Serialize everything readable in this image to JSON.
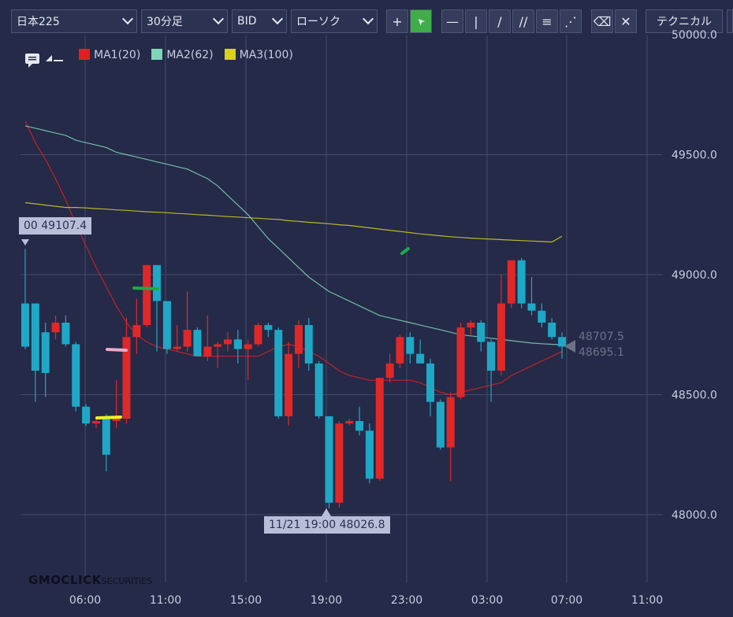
{
  "toolbar": {
    "symbol": "日本225",
    "timeframe": "30分足",
    "price_type": "BID",
    "chart_style": "ローソク",
    "technical": "テクニカル",
    "tools": [
      {
        "name": "crosshair-icon",
        "glyph": "+"
      },
      {
        "name": "pointer-icon",
        "glyph": "➤"
      },
      {
        "name": "horizontal-line-icon",
        "glyph": "—"
      },
      {
        "name": "vertical-line-icon",
        "glyph": "|"
      },
      {
        "name": "trend-line-icon",
        "glyph": "/"
      },
      {
        "name": "parallel-lines-icon",
        "glyph": "//"
      },
      {
        "name": "fibonacci-retracement-icon",
        "glyph": "≡"
      },
      {
        "name": "fibonacci-fan-icon",
        "glyph": "⋰"
      },
      {
        "name": "eraser-icon",
        "glyph": "⌫"
      },
      {
        "name": "erase-all-icon",
        "glyph": "✕"
      }
    ]
  },
  "legend": [
    {
      "label": "MA1(20)",
      "color": "#e02020"
    },
    {
      "label": "MA2(62)",
      "color": "#7fd6b8"
    },
    {
      "label": "MA3(100)",
      "color": "#d8d020"
    }
  ],
  "chart_data": {
    "type": "candlestick",
    "y_ticks": [
      "50000.0",
      "49500.0",
      "49000.0",
      "48500.0",
      "48000.0"
    ],
    "x_ticks": [
      "06:00",
      "11:00",
      "15:00",
      "19:00",
      "23:00",
      "03:00",
      "07:00",
      "11:00"
    ],
    "high_label": "00 49107.4",
    "low_label": "11/21 19:00 48026.8",
    "last_prices": [
      "48707.5",
      "48695.1"
    ],
    "candles": [
      [
        48880,
        49107,
        48690,
        48700
      ],
      [
        48880,
        48880,
        48470,
        48600
      ],
      [
        48760,
        48800,
        48490,
        48590
      ],
      [
        48760,
        48830,
        48730,
        48800
      ],
      [
        48800,
        48830,
        48700,
        48710
      ],
      [
        48710,
        48720,
        48430,
        48450
      ],
      [
        48450,
        48460,
        48370,
        48380
      ],
      [
        48380,
        48400,
        48360,
        48390
      ],
      [
        48400,
        48420,
        48180,
        48250
      ],
      [
        48390,
        48560,
        48360,
        48400
      ],
      [
        48400,
        48820,
        48380,
        48740
      ],
      [
        48740,
        48900,
        48670,
        48790
      ],
      [
        48790,
        49040,
        48780,
        49040
      ],
      [
        49040,
        49040,
        48680,
        48890
      ],
      [
        48890,
        48890,
        48670,
        48690
      ],
      [
        48690,
        48790,
        48680,
        48700
      ],
      [
        48700,
        48930,
        48680,
        48770
      ],
      [
        48770,
        48780,
        48670,
        48660
      ],
      [
        48660,
        48830,
        48640,
        48700
      ],
      [
        48700,
        48720,
        48610,
        48710
      ],
      [
        48710,
        48760,
        48680,
        48730
      ],
      [
        48730,
        48770,
        48630,
        48690
      ],
      [
        48690,
        48730,
        48560,
        48710
      ],
      [
        48710,
        48800,
        48700,
        48790
      ],
      [
        48790,
        48800,
        48740,
        48770
      ],
      [
        48770,
        48780,
        48400,
        48410
      ],
      [
        48410,
        48720,
        48370,
        48670
      ],
      [
        48670,
        48810,
        48610,
        48790
      ],
      [
        48790,
        48820,
        48600,
        48630
      ],
      [
        48630,
        48640,
        48400,
        48410
      ],
      [
        48410,
        48410,
        48026,
        48050
      ],
      [
        48050,
        48390,
        48030,
        48380
      ],
      [
        48380,
        48400,
        48370,
        48390
      ],
      [
        48390,
        48450,
        48330,
        48350
      ],
      [
        48350,
        48380,
        48130,
        48150
      ],
      [
        48150,
        48570,
        48140,
        48570
      ],
      [
        48570,
        48670,
        48550,
        48630
      ],
      [
        48630,
        48750,
        48610,
        48740
      ],
      [
        48740,
        48760,
        48630,
        48670
      ],
      [
        48670,
        48730,
        48640,
        48630
      ],
      [
        48630,
        48650,
        48410,
        48470
      ],
      [
        48470,
        48480,
        48270,
        48280
      ],
      [
        48280,
        48510,
        48140,
        48490
      ],
      [
        48490,
        48800,
        48480,
        48780
      ],
      [
        48780,
        48810,
        48750,
        48800
      ],
      [
        48800,
        48810,
        48680,
        48720
      ],
      [
        48720,
        48730,
        48470,
        48600
      ],
      [
        48600,
        49000,
        48580,
        48880
      ],
      [
        48880,
        49060,
        48860,
        49060
      ],
      [
        49060,
        49070,
        48860,
        48880
      ],
      [
        48880,
        48990,
        48830,
        48850
      ],
      [
        48850,
        48880,
        48780,
        48800
      ],
      [
        48800,
        48820,
        48730,
        48740
      ],
      [
        48740,
        48760,
        48650,
        48700
      ]
    ],
    "ma1": [
      49640,
      49550,
      49480,
      49400,
      49310,
      49210,
      49120,
      49030,
      48950,
      48870,
      48800,
      48750,
      48720,
      48700,
      48690,
      48680,
      48670,
      48660,
      48660,
      48660,
      48660,
      48660,
      48660,
      48660,
      48680,
      48700,
      48710,
      48700,
      48680,
      48660,
      48630,
      48600,
      48580,
      48570,
      48560,
      48560,
      48560,
      48560,
      48560,
      48550,
      48530,
      48510,
      48500,
      48510,
      48520,
      48530,
      48540,
      48550,
      48580,
      48600,
      48620,
      48640,
      48660,
      48680
    ],
    "ma2": [
      49620,
      49610,
      49600,
      49590,
      49580,
      49560,
      49550,
      49540,
      49530,
      49510,
      49500,
      49490,
      49480,
      49470,
      49460,
      49450,
      49440,
      49420,
      49400,
      49370,
      49330,
      49290,
      49250,
      49200,
      49150,
      49110,
      49070,
      49030,
      48990,
      48960,
      48930,
      48910,
      48890,
      48870,
      48850,
      48830,
      48820,
      48810,
      48800,
      48790,
      48780,
      48770,
      48760,
      48750,
      48745,
      48740,
      48735,
      48730,
      48725,
      48720,
      48715,
      48712,
      48710,
      48708
    ],
    "ma3": [
      49300,
      49295,
      49290,
      49285,
      49280,
      49280,
      49278,
      49275,
      49273,
      49270,
      49268,
      49265,
      49262,
      49260,
      49258,
      49255,
      49253,
      49250,
      49248,
      49245,
      49242,
      49240,
      49237,
      49235,
      49232,
      49230,
      49225,
      49222,
      49218,
      49215,
      49212,
      49208,
      49205,
      49200,
      49195,
      49190,
      49185,
      49180,
      49175,
      49170,
      49166,
      49162,
      49158,
      49155,
      49152,
      49150,
      49148,
      49146,
      49144,
      49142,
      49140,
      49138,
      49136,
      49160
    ],
    "ylim": [
      47700,
      50050
    ]
  },
  "logo": {
    "brand": "GMOCLICK",
    "sub": "SECURITIES"
  }
}
